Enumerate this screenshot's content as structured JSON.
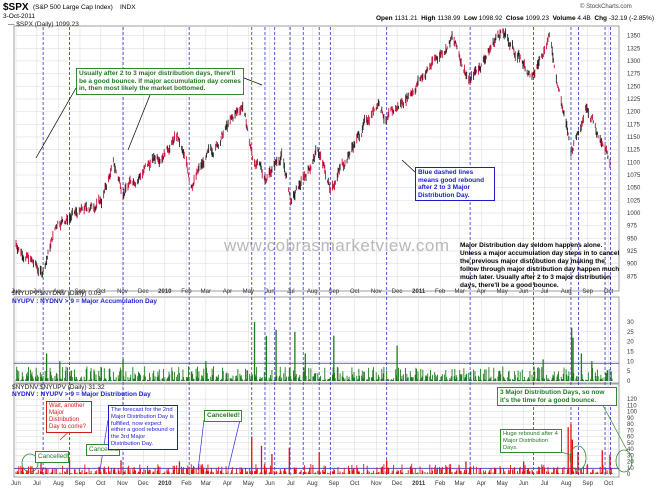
{
  "header": {
    "symbol": "$SPX",
    "name": "(S&P 500 Large Cap Index)",
    "exchange": "INDX",
    "date": "3-Oct-2011",
    "open_label": "Open",
    "open": "1131.21",
    "high_label": "High",
    "high": "1138.99",
    "low_label": "Low",
    "low": "1098.92",
    "close_label": "Close",
    "close": "1099.23",
    "vol_label": "Volume",
    "vol": "4.4B",
    "chg_label": "Chg",
    "chg": "-32.19 (-2.85%)",
    "source": "© StockCharts.com",
    "legend_main": "— $SPX (Daily) 1099.23"
  },
  "panels": {
    "upper_label": "$NYUPV:$NYDNV (Daily) 0.03",
    "upper_rule": "NYUPV : NYDNV > 9 = Major Accumulation Day",
    "lower_label": "$NYDNV:$NYUPV (Daily) 31.32",
    "lower_rule": "NYDNV : NYUPV > 9 = Major Distribution Day"
  },
  "watermark": "www.cobrasmarketview.com",
  "annotations": {
    "green_top": "Usually after 2 to 3 major distribution days, there'll be a good bounce. If major accumulation day comes in, then most likely the market bottomed.",
    "blue_mid": "Blue dashed lines means good rebound after 2 to 3 Major Distribution Day.",
    "black_right": "Major Distribution day seldom happens alone. Unless a major accumulation day steps in to cancel the previous major distribution day making the follow through major distribution day happen much much later. Usually after 2 to 3 major distribution days, there'll be a good bounce.",
    "red_wait": "Wait, another Major Distribution Day to come?",
    "cancelled_1": "Cancelled!",
    "cancelled_2": "Cancelled!",
    "forecast": "The forecast for the 2nd Major Distribution Day is fulfilled, now expect either a good rebound or the 3rd Major Distribution Day.",
    "cancelled_3": "Cancelled!",
    "huge_rebound": "Huge rebound after 4 Major Distribution Days.",
    "three_major": "3 Major Distribution Days, so now it's the time for a good bounce."
  },
  "colors": {
    "price_bar": "#c8143c",
    "price_bar_alt": "#202020",
    "blue_dashed": "#3030d0",
    "accumulation": "#1f7a1f",
    "distribution": "#e01010",
    "threshold": "#3030d0",
    "grid": "#d8d8d8",
    "annotation_line": "#000000"
  },
  "chart_data": [
    {
      "type": "line",
      "title": "$SPX (S&P 500 Large Cap Index) INDX",
      "x_ticks": [
        "Jun",
        "Jul",
        "Aug",
        "Sep",
        "Oct",
        "Nov",
        "Dec",
        "2010",
        "Feb",
        "Mar",
        "Apr",
        "May",
        "Jun",
        "Jul",
        "Aug",
        "Sep",
        "Oct",
        "Nov",
        "Dec",
        "2011",
        "Feb",
        "Mar",
        "Apr",
        "May",
        "Jun",
        "Jul",
        "Aug",
        "Sep",
        "Oct"
      ],
      "y_ticks": [
        875,
        900,
        925,
        950,
        975,
        1000,
        1025,
        1050,
        1075,
        1100,
        1125,
        1150,
        1175,
        1200,
        1225,
        1250,
        1275,
        1300,
        1325,
        1350
      ],
      "ylim": [
        860,
        1365
      ],
      "series": [
        {
          "name": "$SPX (Daily) 1099.23",
          "x": [
            "2009-06-01",
            "2009-07-08",
            "2009-07-31",
            "2009-09-01",
            "2009-10-02",
            "2009-10-19",
            "2009-11-02",
            "2010-01-19",
            "2010-02-08",
            "2010-04-23",
            "2010-05-07",
            "2010-05-25",
            "2010-06-18",
            "2010-07-02",
            "2010-08-09",
            "2010-08-26",
            "2010-11-05",
            "2010-11-16",
            "2011-02-18",
            "2011-03-16",
            "2011-04-29",
            "2011-06-15",
            "2011-07-07",
            "2011-08-08",
            "2011-08-31",
            "2011-09-22",
            "2011-10-03"
          ],
          "values": [
            940,
            880,
            985,
            1000,
            1025,
            1095,
            1045,
            1150,
            1060,
            1215,
            1110,
            1070,
            1115,
            1020,
            1125,
            1050,
            1225,
            1180,
            1345,
            1260,
            1360,
            1265,
            1355,
            1120,
            1220,
            1130,
            1099
          ]
        }
      ]
    },
    {
      "type": "bar",
      "title": "$NYUPV:$NYDNV (Daily) 0.03",
      "y_ticks": [
        0,
        5,
        10,
        15,
        20,
        25,
        30
      ],
      "ylim": [
        0,
        32
      ],
      "threshold": 9,
      "series": [
        {
          "name": "Major Accumulation Day",
          "x": [
            "2009-07-15",
            "2009-08-03",
            "2009-11-02",
            "2010-03-01",
            "2010-05-10",
            "2010-05-27",
            "2010-06-10",
            "2010-07-07",
            "2010-07-22",
            "2010-09-01",
            "2010-12-01",
            "2011-06-29",
            "2011-08-09",
            "2011-08-11",
            "2011-08-23",
            "2011-09-07"
          ],
          "values": [
            14,
            10,
            11,
            10,
            30,
            23,
            26,
            25,
            14,
            23,
            18,
            11,
            27,
            22,
            14,
            10
          ]
        }
      ]
    },
    {
      "type": "bar",
      "title": "$NYDNV:$NYUPV (Daily) 31.32",
      "y_ticks": [
        0,
        10,
        20,
        30,
        40,
        50,
        60,
        70,
        80,
        90,
        100,
        110,
        120
      ],
      "ylim": [
        0,
        125
      ],
      "threshold": 9,
      "series": [
        {
          "name": "Major Distribution Day",
          "x": [
            "2009-07-07",
            "2009-08-17",
            "2009-10-30",
            "2010-01-22",
            "2010-05-06",
            "2010-05-20",
            "2010-06-04",
            "2010-06-29",
            "2010-08-11",
            "2010-11-16",
            "2011-03-10",
            "2011-06-01",
            "2011-08-04",
            "2011-08-08",
            "2011-08-10",
            "2011-08-18",
            "2011-09-22",
            "2011-10-03"
          ],
          "values": [
            25,
            22,
            22,
            20,
            60,
            45,
            32,
            42,
            35,
            22,
            20,
            20,
            75,
            80,
            55,
            35,
            38,
            31
          ]
        }
      ]
    }
  ]
}
